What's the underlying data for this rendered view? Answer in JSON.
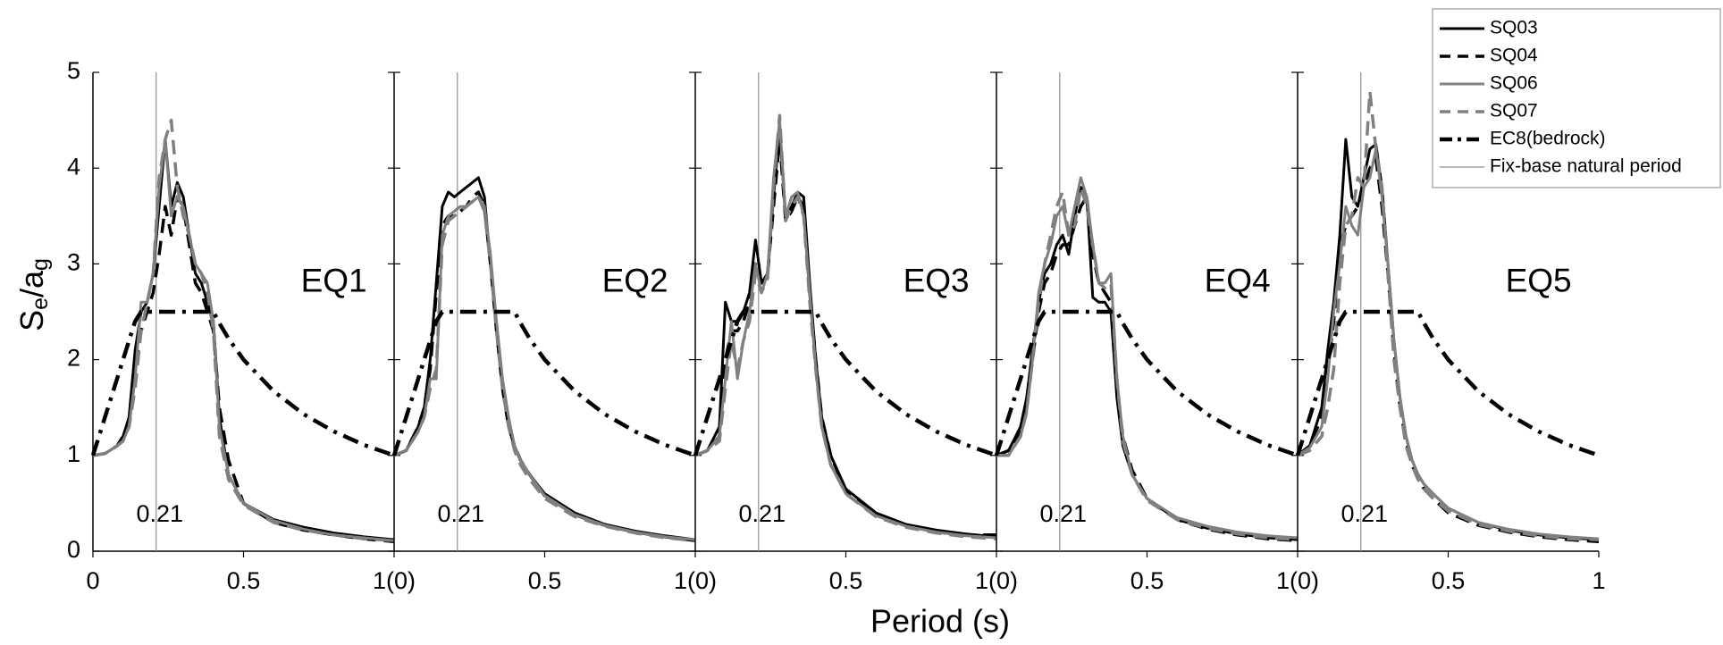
{
  "chart_data": [
    {
      "type": "line",
      "title": "EQ1",
      "ylabel": "Se/ag",
      "xlabel": "Period (s)",
      "legend": "upper right",
      "natural_period_label": "Fix-base natural period",
      "natural_period_color": "#909090",
      "natural_period": 0.21,
      "xlim": [
        0,
        1
      ],
      "ylim": [
        0,
        5
      ],
      "yticks": [
        0,
        1,
        2,
        3,
        4,
        5
      ],
      "xticks": [
        0,
        0.5,
        {
          "value": 1,
          "label": "1(0)"
        }
      ],
      "x": [
        0,
        0.04,
        0.08,
        0.1,
        0.12,
        0.14,
        0.16,
        0.18,
        0.2,
        0.22,
        0.24,
        0.26,
        0.28,
        0.3,
        0.32,
        0.34,
        0.36,
        0.38,
        0.4,
        0.42,
        0.45,
        0.5,
        0.6,
        0.7,
        0.8,
        0.9,
        1
      ],
      "series": [
        {
          "name": "SQ03",
          "color": "#000000",
          "style": "solid",
          "values": [
            1,
            1.02,
            1.1,
            1.2,
            1.4,
            2.1,
            2.5,
            2.6,
            2.9,
            3.6,
            4.3,
            3.6,
            3.85,
            3.7,
            3.3,
            2.9,
            2.8,
            2.6,
            2.4,
            1.4,
            0.8,
            0.5,
            0.33,
            0.25,
            0.19,
            0.15,
            0.12
          ]
        },
        {
          "name": "SQ04",
          "color": "#000000",
          "style": "dashed",
          "values": [
            1,
            1.02,
            1.1,
            1.2,
            1.35,
            1.9,
            2.3,
            2.5,
            2.7,
            3.1,
            3.6,
            3.3,
            3.7,
            3.6,
            3.2,
            2.8,
            2.7,
            2.5,
            2.3,
            1.5,
            0.95,
            0.5,
            0.3,
            0.22,
            0.17,
            0.13,
            0.1
          ]
        },
        {
          "name": "SQ06",
          "color": "#808080",
          "style": "solid",
          "values": [
            1,
            1.02,
            1.1,
            1.15,
            1.3,
            1.8,
            2.6,
            2.6,
            2.9,
            3.8,
            4.3,
            3.5,
            3.7,
            3.6,
            3.3,
            3,
            2.9,
            2.8,
            2.4,
            1.3,
            0.8,
            0.5,
            0.32,
            0.23,
            0.17,
            0.14,
            0.11
          ]
        },
        {
          "name": "SQ07",
          "color": "#808080",
          "style": "dashed",
          "values": [
            1,
            1.02,
            1.1,
            1.15,
            1.3,
            1.7,
            2.3,
            2.6,
            2.9,
            3.9,
            4.3,
            4.5,
            3.8,
            3.5,
            3.3,
            3,
            2.9,
            2.7,
            2.3,
            1.2,
            0.75,
            0.48,
            0.3,
            0.22,
            0.17,
            0.13,
            0.11
          ]
        },
        {
          "name": "EC8(bedrock)",
          "color": "#000000",
          "style": "dashdot",
          "values": [
            1,
            1.4,
            1.8,
            2,
            2.2,
            2.4,
            2.5,
            2.5,
            2.5,
            2.5,
            2.5,
            2.5,
            2.5,
            2.5,
            2.5,
            2.5,
            2.5,
            2.5,
            2.5,
            2.38,
            2.22,
            2,
            1.67,
            1.43,
            1.25,
            1.11,
            1
          ]
        }
      ]
    },
    {
      "type": "line",
      "title": "EQ2",
      "natural_period": 0.21,
      "xlim": [
        0,
        1
      ],
      "ylim": [
        0,
        5
      ],
      "xticks": [
        0.5,
        {
          "value": 1,
          "label": "1(0)"
        }
      ],
      "x": [
        0,
        0.04,
        0.08,
        0.1,
        0.12,
        0.14,
        0.16,
        0.18,
        0.2,
        0.22,
        0.24,
        0.26,
        0.28,
        0.3,
        0.32,
        0.34,
        0.36,
        0.38,
        0.4,
        0.42,
        0.45,
        0.5,
        0.6,
        0.7,
        0.8,
        0.9,
        1
      ],
      "series": [
        {
          "name": "SQ03",
          "color": "#000000",
          "style": "solid",
          "values": [
            1,
            1.05,
            1.3,
            1.5,
            2,
            2.8,
            3.6,
            3.75,
            3.7,
            3.75,
            3.8,
            3.85,
            3.9,
            3.7,
            3,
            2.3,
            1.7,
            1.3,
            1.1,
            0.95,
            0.8,
            0.6,
            0.4,
            0.28,
            0.21,
            0.16,
            0.12
          ]
        },
        {
          "name": "SQ04",
          "color": "#000000",
          "style": "dashed",
          "values": [
            1,
            1.05,
            1.3,
            1.5,
            1.9,
            2.7,
            3.4,
            3.5,
            3.5,
            3.55,
            3.6,
            3.7,
            3.75,
            3.6,
            3,
            2.3,
            1.7,
            1.3,
            1.1,
            0.95,
            0.8,
            0.58,
            0.38,
            0.27,
            0.2,
            0.15,
            0.11
          ]
        },
        {
          "name": "SQ06",
          "color": "#808080",
          "style": "solid",
          "values": [
            1,
            1.05,
            1.25,
            1.4,
            1.8,
            1.8,
            3.3,
            3.5,
            3.55,
            3.6,
            3.6,
            3.65,
            3.7,
            3.6,
            3.1,
            2.4,
            1.8,
            1.4,
            1.1,
            0.95,
            0.8,
            0.58,
            0.38,
            0.27,
            0.2,
            0.15,
            0.12
          ]
        },
        {
          "name": "SQ07",
          "color": "#808080",
          "style": "dashed",
          "values": [
            1,
            1.05,
            1.25,
            1.4,
            1.7,
            1.9,
            3.2,
            3.45,
            3.5,
            3.55,
            3.6,
            3.65,
            3.7,
            3.55,
            3,
            2.3,
            1.7,
            1.3,
            1.05,
            0.9,
            0.75,
            0.55,
            0.36,
            0.26,
            0.19,
            0.14,
            0.11
          ]
        },
        {
          "name": "EC8(bedrock)",
          "color": "#000000",
          "style": "dashdot",
          "values": [
            1,
            1.4,
            1.8,
            2,
            2.2,
            2.4,
            2.5,
            2.5,
            2.5,
            2.5,
            2.5,
            2.5,
            2.5,
            2.5,
            2.5,
            2.5,
            2.5,
            2.5,
            2.5,
            2.38,
            2.22,
            2,
            1.67,
            1.43,
            1.25,
            1.11,
            1
          ]
        }
      ]
    },
    {
      "type": "line",
      "title": "EQ3",
      "natural_period": 0.21,
      "xlim": [
        0,
        1
      ],
      "ylim": [
        0,
        5
      ],
      "xticks": [
        0.5,
        {
          "value": 1,
          "label": "1(0)"
        }
      ],
      "x": [
        0,
        0.04,
        0.08,
        0.1,
        0.12,
        0.14,
        0.16,
        0.18,
        0.2,
        0.22,
        0.24,
        0.26,
        0.28,
        0.3,
        0.32,
        0.34,
        0.36,
        0.38,
        0.4,
        0.42,
        0.45,
        0.5,
        0.6,
        0.7,
        0.8,
        0.9,
        1
      ],
      "series": [
        {
          "name": "SQ03",
          "color": "#000000",
          "style": "solid",
          "values": [
            1,
            1.05,
            1.3,
            2.6,
            2.4,
            2.4,
            2.5,
            2.7,
            3.25,
            2.8,
            2.9,
            3.7,
            4.4,
            3.5,
            3.6,
            3.75,
            3.7,
            2.8,
            2,
            1.4,
            1,
            0.65,
            0.4,
            0.28,
            0.22,
            0.18,
            0.15
          ]
        },
        {
          "name": "SQ04",
          "color": "#000000",
          "style": "dashed",
          "values": [
            1,
            1.05,
            1.2,
            2,
            2.3,
            2.3,
            2.4,
            2.6,
            3,
            2.8,
            2.9,
            3.6,
            4.3,
            3.45,
            3.55,
            3.7,
            3.6,
            2.7,
            2,
            1.4,
            1,
            0.62,
            0.38,
            0.27,
            0.2,
            0.17,
            0.17
          ]
        },
        {
          "name": "SQ06",
          "color": "#808080",
          "style": "solid",
          "values": [
            1,
            1.05,
            1.2,
            1.8,
            2.4,
            1.8,
            2.2,
            2.5,
            3,
            2.7,
            2.9,
            3.9,
            4.5,
            3.5,
            3.7,
            3.75,
            3.5,
            2.7,
            1.9,
            1.3,
            0.9,
            0.6,
            0.37,
            0.26,
            0.2,
            0.16,
            0.14
          ]
        },
        {
          "name": "SQ07",
          "color": "#808080",
          "style": "dashed",
          "values": [
            1,
            1.05,
            1.15,
            1.7,
            2.2,
            1.9,
            2.2,
            2.4,
            2.9,
            2.7,
            2.85,
            3.8,
            4.55,
            3.45,
            3.6,
            3.7,
            3.5,
            2.6,
            1.9,
            1.3,
            0.9,
            0.6,
            0.36,
            0.25,
            0.19,
            0.15,
            0.13
          ]
        },
        {
          "name": "EC8(bedrock)",
          "color": "#000000",
          "style": "dashdot",
          "values": [
            1,
            1.4,
            1.8,
            2,
            2.2,
            2.4,
            2.5,
            2.5,
            2.5,
            2.5,
            2.5,
            2.5,
            2.5,
            2.5,
            2.5,
            2.5,
            2.5,
            2.5,
            2.5,
            2.38,
            2.22,
            2,
            1.67,
            1.43,
            1.25,
            1.11,
            1
          ]
        }
      ]
    },
    {
      "type": "line",
      "title": "EQ4",
      "natural_period": 0.21,
      "xlim": [
        0,
        1
      ],
      "ylim": [
        0,
        5
      ],
      "xticks": [
        0.5,
        {
          "value": 1,
          "label": "1(0)"
        }
      ],
      "x": [
        0,
        0.04,
        0.08,
        0.1,
        0.12,
        0.14,
        0.16,
        0.18,
        0.2,
        0.22,
        0.24,
        0.26,
        0.28,
        0.3,
        0.32,
        0.34,
        0.36,
        0.38,
        0.4,
        0.42,
        0.45,
        0.5,
        0.6,
        0.7,
        0.8,
        0.9,
        1
      ],
      "series": [
        {
          "name": "SQ03",
          "color": "#000000",
          "style": "solid",
          "values": [
            1,
            1.05,
            1.3,
            1.6,
            2.1,
            2.6,
            2.9,
            3,
            3.2,
            3.3,
            3.1,
            3.5,
            3.8,
            3.7,
            2.65,
            2.6,
            2.6,
            2.5,
            1.6,
            1.1,
            0.8,
            0.55,
            0.33,
            0.24,
            0.18,
            0.14,
            0.12
          ]
        },
        {
          "name": "SQ04",
          "color": "#000000",
          "style": "dashed",
          "values": [
            1,
            1.05,
            1.25,
            1.5,
            2,
            2.5,
            2.8,
            2.9,
            3.1,
            3.2,
            3.2,
            3.4,
            3.6,
            3.7,
            3.1,
            2.8,
            2.7,
            2.6,
            1.7,
            1.2,
            0.85,
            0.55,
            0.33,
            0.23,
            0.17,
            0.13,
            0.11
          ]
        },
        {
          "name": "SQ06",
          "color": "#808080",
          "style": "solid",
          "values": [
            1,
            1,
            1.2,
            1.45,
            2,
            2.7,
            3,
            3.2,
            3.5,
            3.6,
            3.3,
            3.6,
            3.9,
            3.7,
            3.2,
            2.8,
            2.8,
            2.9,
            1.8,
            1.2,
            0.8,
            0.55,
            0.35,
            0.26,
            0.2,
            0.16,
            0.14
          ]
        },
        {
          "name": "SQ07",
          "color": "#808080",
          "style": "dashed",
          "values": [
            1,
            1,
            1.2,
            1.45,
            2,
            2.6,
            3,
            3.3,
            3.6,
            3.75,
            3.3,
            3.4,
            3.8,
            3.6,
            3.2,
            2.8,
            2.75,
            2.8,
            1.8,
            1.15,
            0.8,
            0.53,
            0.33,
            0.24,
            0.18,
            0.14,
            0.12
          ]
        },
        {
          "name": "EC8(bedrock)",
          "color": "#000000",
          "style": "dashdot",
          "values": [
            1,
            1.4,
            1.8,
            2,
            2.2,
            2.4,
            2.5,
            2.5,
            2.5,
            2.5,
            2.5,
            2.5,
            2.5,
            2.5,
            2.5,
            2.5,
            2.5,
            2.5,
            2.5,
            2.38,
            2.22,
            2,
            1.67,
            1.43,
            1.25,
            1.11,
            1
          ]
        }
      ]
    },
    {
      "type": "line",
      "title": "EQ5",
      "natural_period": 0.21,
      "xlim": [
        0,
        1
      ],
      "ylim": [
        0,
        5
      ],
      "xticks": [
        0.5,
        1
      ],
      "x": [
        0,
        0.04,
        0.08,
        0.1,
        0.12,
        0.14,
        0.16,
        0.18,
        0.2,
        0.22,
        0.24,
        0.26,
        0.28,
        0.3,
        0.32,
        0.34,
        0.36,
        0.38,
        0.4,
        0.42,
        0.45,
        0.5,
        0.6,
        0.7,
        0.8,
        0.9,
        1
      ],
      "series": [
        {
          "name": "SQ03",
          "color": "#000000",
          "style": "solid",
          "values": [
            1,
            1.1,
            1.5,
            2.1,
            2.6,
            3.3,
            4.3,
            3.7,
            3.6,
            3.9,
            4.2,
            4.25,
            3.8,
            3,
            2.2,
            1.6,
            1.2,
            0.95,
            0.8,
            0.7,
            0.6,
            0.45,
            0.3,
            0.22,
            0.17,
            0.14,
            0.12
          ]
        },
        {
          "name": "SQ04",
          "color": "#000000",
          "style": "dashed",
          "values": [
            1,
            1.1,
            1.4,
            1.9,
            2.4,
            3.2,
            3.4,
            3.5,
            3.6,
            3.8,
            4,
            4.1,
            3.6,
            2.9,
            2.1,
            1.5,
            1.15,
            0.9,
            0.75,
            0.65,
            0.55,
            0.4,
            0.27,
            0.2,
            0.15,
            0.12,
            0.1
          ]
        },
        {
          "name": "SQ06",
          "color": "#808080",
          "style": "solid",
          "values": [
            1,
            1.08,
            1.3,
            1.8,
            2.5,
            3,
            3.6,
            3.4,
            3.3,
            3.8,
            3.9,
            4.2,
            3.7,
            3,
            2.2,
            1.6,
            1.2,
            0.95,
            0.8,
            0.7,
            0.6,
            0.45,
            0.3,
            0.23,
            0.18,
            0.15,
            0.13
          ]
        },
        {
          "name": "SQ07",
          "color": "#808080",
          "style": "dashed",
          "values": [
            1,
            1.05,
            1.2,
            1.5,
            1.9,
            2.8,
            3.4,
            3.5,
            3.9,
            3.8,
            4.8,
            4.2,
            3.8,
            2.9,
            2,
            1.5,
            1.1,
            0.9,
            0.75,
            0.65,
            0.55,
            0.42,
            0.28,
            0.21,
            0.16,
            0.13,
            0.12
          ]
        },
        {
          "name": "EC8(bedrock)",
          "color": "#000000",
          "style": "dashdot",
          "values": [
            1,
            1.4,
            1.8,
            2,
            2.2,
            2.4,
            2.5,
            2.5,
            2.5,
            2.5,
            2.5,
            2.5,
            2.5,
            2.5,
            2.5,
            2.5,
            2.5,
            2.5,
            2.5,
            2.38,
            2.22,
            2,
            1.67,
            1.43,
            1.25,
            1.11,
            1
          ]
        }
      ]
    }
  ]
}
